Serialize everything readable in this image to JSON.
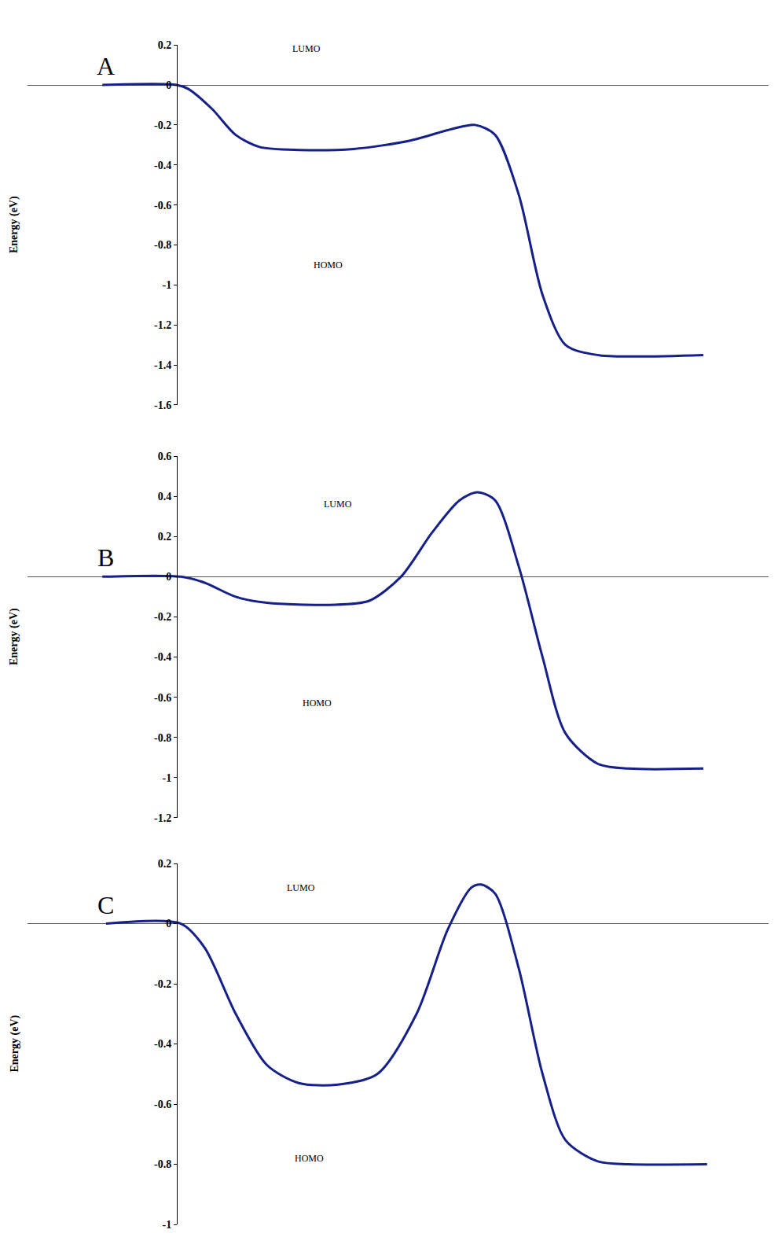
{
  "chart_data": [
    {
      "type": "line",
      "title": "A",
      "y_label": "Energy (eV)",
      "color": "#15208a",
      "x": [
        10.1,
        20.1,
        21.7,
        24.9,
        28.1,
        31.3,
        36.6,
        44.0,
        51.4,
        57.3,
        60.4,
        63.1,
        66.3,
        69.5,
        72.6,
        76.9,
        91.2
      ],
      "values": [
        0,
        0,
        -0.02,
        -0.12,
        -0.25,
        -0.31,
        -0.325,
        -0.32,
        -0.28,
        -0.22,
        -0.2,
        -0.25,
        -0.55,
        -1.05,
        -1.3,
        -1.35,
        -1.35
      ],
      "xlim": [
        0,
        100
      ],
      "ylim": [
        -1.6,
        0.2
      ],
      "yticks": [
        0.2,
        0,
        -0.2,
        -0.4,
        -0.6,
        -0.8,
        -1,
        -1.2,
        -1.4,
        -1.6
      ],
      "tick_labels": "y",
      "grid": false,
      "annotations": [
        {
          "text": "LUMO",
          "x": 35.5,
          "y": 0.18
        },
        {
          "text": "HOMO",
          "x": 38.4,
          "y": -0.9
        }
      ]
    },
    {
      "type": "line",
      "title": "B",
      "y_label": "Energy (eV)",
      "color": "#15208a",
      "x": [
        10.1,
        20.7,
        23.9,
        28.1,
        32.3,
        40.8,
        46.1,
        50.4,
        54.6,
        58.3,
        60.7,
        63.1,
        66.3,
        69.5,
        72.6,
        76.9,
        81.1,
        91.2
      ],
      "values": [
        0,
        0,
        -0.03,
        -0.1,
        -0.13,
        -0.14,
        -0.12,
        0,
        0.22,
        0.38,
        0.42,
        0.38,
        0.05,
        -0.4,
        -0.78,
        -0.93,
        -0.955,
        -0.955
      ],
      "xlim": [
        0,
        100
      ],
      "ylim": [
        -1.2,
        0.6
      ],
      "yticks": [
        0.6,
        0.4,
        0.2,
        0,
        -0.2,
        -0.4,
        -0.6,
        -0.8,
        -1,
        -1.2
      ],
      "tick_labels": "y",
      "grid": false,
      "annotations": [
        {
          "text": "LUMO",
          "x": 39.8,
          "y": 0.36
        },
        {
          "text": "HOMO",
          "x": 36.9,
          "y": -0.63
        }
      ]
    },
    {
      "type": "line",
      "title": "C",
      "y_label": "Energy (eV)",
      "color": "#15208a",
      "x": [
        10.6,
        20.7,
        23.9,
        28.1,
        32.3,
        36.6,
        41.9,
        47.2,
        52.5,
        56.7,
        59.9,
        61.2,
        63.1,
        66.3,
        69.5,
        72.6,
        76.9,
        81.1,
        91.7
      ],
      "values": [
        0,
        0,
        -0.08,
        -0.3,
        -0.47,
        -0.53,
        -0.535,
        -0.5,
        -0.3,
        -0.02,
        0.12,
        0.13,
        0.1,
        -0.15,
        -0.5,
        -0.72,
        -0.79,
        -0.8,
        -0.8
      ],
      "xlim": [
        0,
        100
      ],
      "ylim": [
        -1,
        0.2
      ],
      "yticks": [
        0.2,
        0,
        -0.2,
        -0.4,
        -0.6,
        -0.8,
        -1
      ],
      "tick_labels": "y",
      "grid": false,
      "annotations": [
        {
          "text": "LUMO",
          "x": 34.8,
          "y": 0.12
        },
        {
          "text": "HOMO",
          "x": 35.8,
          "y": -0.78
        }
      ]
    }
  ]
}
